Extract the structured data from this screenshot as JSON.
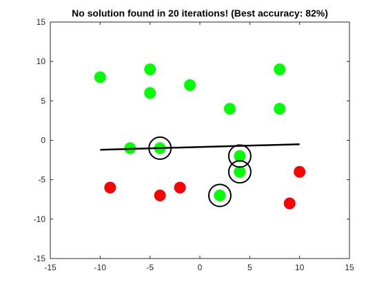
{
  "chart_data": {
    "type": "scatter",
    "title": "No solution found in 20 iterations! (Best accuracy: 82%)",
    "xlabel": "",
    "ylabel": "",
    "xlim": [
      -15,
      15
    ],
    "ylim": [
      -15,
      15
    ],
    "xticks": [
      -15,
      -10,
      -5,
      0,
      5,
      10,
      15
    ],
    "yticks": [
      -15,
      -10,
      -5,
      0,
      5,
      10,
      15
    ],
    "grid": false,
    "legend": "none",
    "colors": {
      "class_a": "#00ff00",
      "class_b": "#ff0000",
      "boundary": "#000000",
      "highlight": "#000000",
      "axis": "#262626"
    },
    "series": [
      {
        "class": "class_a",
        "color": "#00ff00",
        "points": [
          {
            "x": -10,
            "y": 8
          },
          {
            "x": -5,
            "y": 9
          },
          {
            "x": -5,
            "y": 6
          },
          {
            "x": -1,
            "y": 7
          },
          {
            "x": 3,
            "y": 4
          },
          {
            "x": 8,
            "y": 9
          },
          {
            "x": 8,
            "y": 4
          },
          {
            "x": -7,
            "y": -1
          },
          {
            "x": -4,
            "y": -1
          },
          {
            "x": 4,
            "y": -2
          },
          {
            "x": 4,
            "y": -4
          },
          {
            "x": 2,
            "y": -7
          }
        ]
      },
      {
        "class": "class_b",
        "color": "#ff0000",
        "points": [
          {
            "x": -9,
            "y": -6
          },
          {
            "x": -4,
            "y": -7
          },
          {
            "x": -2,
            "y": -6
          },
          {
            "x": 10,
            "y": -4
          },
          {
            "x": 9,
            "y": -8
          }
        ]
      }
    ],
    "boundary_line": {
      "points": [
        {
          "x": -10,
          "y": -1.2
        },
        {
          "x": 10,
          "y": -0.5
        }
      ]
    },
    "highlighted_points": [
      {
        "x": -4,
        "y": -1
      },
      {
        "x": 4,
        "y": -2
      },
      {
        "x": 4,
        "y": -4
      },
      {
        "x": 2,
        "y": -7
      }
    ]
  }
}
